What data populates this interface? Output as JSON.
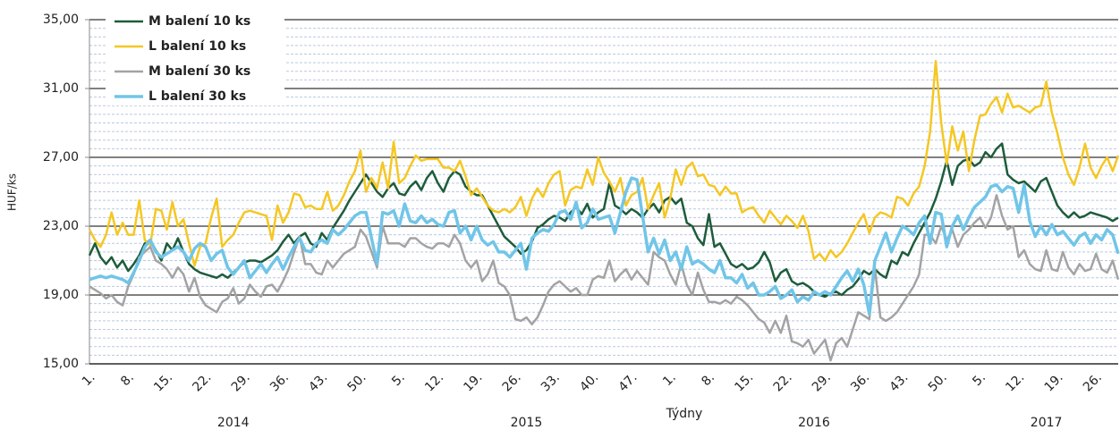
{
  "chart_data": {
    "type": "line",
    "y_label": "HUF/ks",
    "x_label": "Týdny",
    "categories": [
      "1.",
      null,
      null,
      null,
      null,
      null,
      null,
      "8.",
      null,
      null,
      null,
      null,
      null,
      null,
      "15.",
      null,
      null,
      null,
      null,
      null,
      null,
      "22.",
      null,
      null,
      null,
      null,
      null,
      null,
      "29.",
      null,
      null,
      null,
      null,
      null,
      null,
      "36.",
      null,
      null,
      null,
      null,
      null,
      null,
      "43.",
      null,
      null,
      null,
      null,
      null,
      null,
      "50.",
      null,
      null,
      null,
      null,
      null,
      null,
      "5.",
      null,
      null,
      null,
      null,
      null,
      null,
      "12.",
      null,
      null,
      null,
      null,
      null,
      null,
      "19.",
      null,
      null,
      null,
      null,
      null,
      null,
      "26.",
      null,
      null,
      null,
      null,
      null,
      null,
      "33.",
      null,
      null,
      null,
      null,
      null,
      null,
      "40.",
      null,
      null,
      null,
      null,
      null,
      null,
      "47.",
      null,
      null,
      null,
      null,
      null,
      null,
      "1.",
      null,
      null,
      null,
      null,
      null,
      null,
      "8.",
      null,
      null,
      null,
      null,
      null,
      null,
      "15.",
      null,
      null,
      null,
      null,
      null,
      null,
      "22.",
      null,
      null,
      null,
      null,
      null,
      null,
      "29.",
      null,
      null,
      null,
      null,
      null,
      null,
      "36.",
      null,
      null,
      null,
      null,
      null,
      null,
      "43.",
      null,
      null,
      null,
      null,
      null,
      null,
      "50.",
      null,
      null,
      null,
      null,
      null,
      null,
      "5.",
      null,
      null,
      null,
      null,
      null,
      null,
      "12.",
      null,
      null,
      null,
      null,
      null,
      null,
      "19.",
      null,
      null,
      null,
      null,
      null,
      null,
      "26.",
      null,
      null,
      null,
      null
    ],
    "year_labels": [
      null,
      null,
      null,
      null,
      null,
      null,
      null,
      null,
      null,
      null,
      null,
      null,
      null,
      null,
      null,
      null,
      null,
      null,
      null,
      null,
      null,
      null,
      null,
      null,
      null,
      null,
      "2014",
      null,
      null,
      null,
      null,
      null,
      null,
      null,
      null,
      null,
      null,
      null,
      null,
      null,
      null,
      null,
      null,
      null,
      null,
      null,
      null,
      null,
      null,
      null,
      null,
      null,
      null,
      null,
      null,
      null,
      null,
      null,
      null,
      null,
      null,
      null,
      null,
      null,
      null,
      null,
      null,
      null,
      null,
      null,
      null,
      null,
      null,
      null,
      null,
      null,
      null,
      null,
      null,
      "2015",
      null,
      null,
      null,
      null,
      null,
      null,
      null,
      null,
      null,
      null,
      null,
      null,
      null,
      null,
      null,
      null,
      null,
      null,
      null,
      null,
      null,
      null,
      null,
      null,
      null,
      null,
      null,
      null,
      null,
      null,
      null,
      null,
      null,
      null,
      null,
      null,
      null,
      null,
      null,
      null,
      null,
      null,
      null,
      null,
      null,
      null,
      null,
      null,
      null,
      null,
      null,
      "2016",
      null,
      null,
      null,
      null,
      null,
      null,
      null,
      null,
      null,
      null,
      null,
      null,
      null,
      null,
      null,
      null,
      null,
      null,
      null,
      null,
      null,
      null,
      null,
      null,
      null,
      null,
      null,
      null,
      null,
      null,
      null,
      null,
      null,
      null,
      null,
      null,
      null,
      null,
      null,
      null,
      null,
      "2017",
      null,
      null,
      null,
      null,
      null,
      null,
      null,
      null,
      null,
      null,
      null,
      null,
      null
    ],
    "series": [
      {
        "name": "M balení 10 ks",
        "color": "#1d5c3a",
        "width": 2.5,
        "values": [
          21.3,
          22.0,
          21.2,
          20.8,
          21.2,
          20.6,
          21.0,
          20.4,
          20.8,
          21.3,
          22.0,
          22.2,
          21.6,
          21.0,
          22.0,
          21.6,
          22.3,
          21.5,
          20.8,
          20.5,
          20.3,
          20.2,
          20.1,
          20.0,
          20.2,
          20.0,
          20.3,
          20.6,
          20.9,
          21.0,
          21.0,
          20.9,
          21.1,
          21.3,
          21.6,
          22.1,
          22.5,
          22.0,
          22.4,
          22.6,
          22.0,
          21.8,
          22.6,
          22.2,
          22.9,
          23.4,
          23.9,
          24.5,
          25.0,
          25.5,
          26.0,
          25.5,
          25.0,
          24.7,
          25.2,
          25.5,
          24.9,
          24.8,
          25.3,
          25.6,
          25.1,
          25.8,
          26.2,
          25.5,
          25.0,
          25.8,
          26.2,
          26.0,
          25.3,
          25.0,
          24.8,
          24.8,
          24.2,
          23.6,
          23.0,
          22.4,
          22.1,
          21.8,
          21.4,
          21.6,
          22.1,
          22.9,
          23.1,
          23.4,
          23.6,
          23.5,
          23.3,
          23.8,
          24.1,
          23.7,
          24.3,
          23.5,
          23.8,
          24.0,
          25.5,
          24.2,
          24.0,
          23.7,
          24.0,
          23.8,
          23.5,
          24.0,
          24.3,
          23.8,
          24.5,
          24.7,
          24.3,
          24.6,
          23.2,
          23.0,
          22.3,
          21.9,
          23.7,
          21.8,
          22.0,
          21.4,
          20.8,
          20.6,
          20.8,
          20.5,
          20.6,
          20.9,
          21.5,
          20.9,
          19.8,
          20.3,
          20.5,
          19.8,
          19.6,
          19.7,
          19.5,
          19.2,
          19.0,
          18.9,
          19.1,
          19.2,
          19.0,
          19.3,
          19.5,
          19.9,
          20.4,
          20.2,
          20.5,
          20.2,
          20.0,
          21.0,
          20.8,
          21.5,
          21.3,
          22.0,
          22.6,
          23.2,
          23.8,
          24.6,
          25.6,
          26.8,
          25.4,
          26.5,
          26.8,
          26.9,
          26.5,
          26.7,
          27.3,
          27.0,
          27.5,
          27.8,
          26.0,
          25.7,
          25.5,
          25.6,
          25.3,
          25.0,
          25.6,
          25.8,
          25.0,
          24.2,
          23.8,
          23.5,
          23.8,
          23.5,
          23.6,
          23.8,
          23.7,
          23.6,
          23.5,
          23.3,
          23.5
        ]
      },
      {
        "name": "L balení 10 ks",
        "color": "#f5c723",
        "width": 2.5,
        "values": [
          22.8,
          22.2,
          21.8,
          22.5,
          23.8,
          22.5,
          23.2,
          22.5,
          22.5,
          24.5,
          22.2,
          21.9,
          24.0,
          23.9,
          22.8,
          24.4,
          23.0,
          23.4,
          22.0,
          20.7,
          21.8,
          22.0,
          23.5,
          24.6,
          21.8,
          22.2,
          22.5,
          23.2,
          23.8,
          23.9,
          23.8,
          23.7,
          23.6,
          22.2,
          24.2,
          23.2,
          23.8,
          24.9,
          24.8,
          24.1,
          24.2,
          24.0,
          24.0,
          25.0,
          23.9,
          24.2,
          24.8,
          25.6,
          26.2,
          27.4,
          25.0,
          25.8,
          25.2,
          26.7,
          25.2,
          27.9,
          25.5,
          25.8,
          26.5,
          27.1,
          26.8,
          26.9,
          26.9,
          26.9,
          26.4,
          26.4,
          26.2,
          26.8,
          25.9,
          24.8,
          25.2,
          24.7,
          24.2,
          23.9,
          23.8,
          24.0,
          23.8,
          24.1,
          24.7,
          23.6,
          24.6,
          25.2,
          24.7,
          25.5,
          26.0,
          26.2,
          24.2,
          25.1,
          25.3,
          25.2,
          26.3,
          25.4,
          27.0,
          26.1,
          25.6,
          25.0,
          25.8,
          24.2,
          24.8,
          25.0,
          25.8,
          24.0,
          24.8,
          25.5,
          23.5,
          24.6,
          26.3,
          25.4,
          26.4,
          26.7,
          25.9,
          26.0,
          25.4,
          25.3,
          24.8,
          25.3,
          24.9,
          24.9,
          23.8,
          24.0,
          24.1,
          23.6,
          23.2,
          23.9,
          23.5,
          23.1,
          23.6,
          23.3,
          22.9,
          23.6,
          22.7,
          21.1,
          21.4,
          21.0,
          21.6,
          21.2,
          21.5,
          22.0,
          22.6,
          23.2,
          23.7,
          22.6,
          23.5,
          23.8,
          23.7,
          23.5,
          24.7,
          24.6,
          24.2,
          24.9,
          25.3,
          26.5,
          28.5,
          32.6,
          29.0,
          26.6,
          28.8,
          27.4,
          28.5,
          26.2,
          28.0,
          29.4,
          29.5,
          30.1,
          30.5,
          29.6,
          30.7,
          29.9,
          30.0,
          29.8,
          29.6,
          29.9,
          30.0,
          31.4,
          29.6,
          28.4,
          27.0,
          26.0,
          25.4,
          26.4,
          27.8,
          26.4,
          25.8,
          26.5,
          27.0,
          26.2,
          27.1
        ]
      },
      {
        "name": "M balení 30 ks",
        "color": "#a3a3a3",
        "width": 2.5,
        "values": [
          19.5,
          19.3,
          19.1,
          18.8,
          19.0,
          18.6,
          18.4,
          19.5,
          20.2,
          21.2,
          21.5,
          21.8,
          21.0,
          20.8,
          20.5,
          20.0,
          20.6,
          20.2,
          19.2,
          20.0,
          18.9,
          18.4,
          18.2,
          18.0,
          18.6,
          18.8,
          19.4,
          18.5,
          18.8,
          19.6,
          19.2,
          18.9,
          19.5,
          19.6,
          19.2,
          19.8,
          20.5,
          21.5,
          22.4,
          20.8,
          20.8,
          20.3,
          20.2,
          21.0,
          20.6,
          21.0,
          21.4,
          21.6,
          21.8,
          22.8,
          22.4,
          21.5,
          20.6,
          23.0,
          22.0,
          22.0,
          22.0,
          21.8,
          22.3,
          22.3,
          22.0,
          21.8,
          21.7,
          22.0,
          22.0,
          21.8,
          22.5,
          22.0,
          21.0,
          20.6,
          21.0,
          19.8,
          20.2,
          21.0,
          19.7,
          19.5,
          19.0,
          17.6,
          17.5,
          17.7,
          17.3,
          17.7,
          18.4,
          19.2,
          19.6,
          19.8,
          19.5,
          19.2,
          19.4,
          19.0,
          19.0,
          19.9,
          20.1,
          20.0,
          21.0,
          19.8,
          20.2,
          20.5,
          19.9,
          20.4,
          20.0,
          19.6,
          21.5,
          21.2,
          21.0,
          20.2,
          19.6,
          20.8,
          19.6,
          19.0,
          20.3,
          19.3,
          18.6,
          18.6,
          18.5,
          18.7,
          18.5,
          18.9,
          18.7,
          18.4,
          18.0,
          17.6,
          17.4,
          16.8,
          17.5,
          16.8,
          17.8,
          16.3,
          16.2,
          16.0,
          16.4,
          15.6,
          16.0,
          16.4,
          15.2,
          16.2,
          16.5,
          16.0,
          17.0,
          18.0,
          17.8,
          17.6,
          20.6,
          17.7,
          17.5,
          17.7,
          18.0,
          18.5,
          19.0,
          19.5,
          20.2,
          22.5,
          22.5,
          22.0,
          23.0,
          22.2,
          22.8,
          21.8,
          22.5,
          22.8,
          23.2,
          23.5,
          22.9,
          23.5,
          24.8,
          23.6,
          22.8,
          23.0,
          21.2,
          21.6,
          20.8,
          20.5,
          20.4,
          21.6,
          20.5,
          20.4,
          21.5,
          20.6,
          20.2,
          20.8,
          20.4,
          20.5,
          21.4,
          20.5,
          20.3,
          21.0,
          19.9
        ]
      },
      {
        "name": "L balení 30 ks",
        "color": "#71c5e8",
        "width": 3.5,
        "values": [
          19.9,
          20.0,
          20.1,
          20.0,
          20.1,
          20.0,
          19.9,
          19.7,
          20.3,
          21.0,
          21.8,
          22.2,
          21.5,
          21.2,
          21.4,
          21.6,
          21.8,
          21.5,
          21.0,
          21.7,
          22.0,
          21.8,
          21.0,
          21.4,
          21.6,
          20.6,
          20.2,
          20.6,
          21.0,
          20.0,
          20.4,
          20.8,
          20.3,
          20.8,
          21.2,
          20.5,
          21.2,
          21.8,
          22.3,
          21.6,
          21.5,
          22.0,
          22.2,
          22.0,
          22.8,
          22.5,
          22.8,
          23.2,
          23.6,
          23.8,
          23.8,
          22.3,
          20.8,
          23.8,
          23.7,
          23.9,
          23.0,
          24.3,
          23.3,
          23.2,
          23.6,
          23.2,
          23.4,
          23.1,
          23.0,
          23.8,
          23.9,
          22.6,
          23.0,
          22.2,
          23.0,
          22.2,
          21.9,
          22.1,
          21.5,
          21.5,
          21.2,
          21.6,
          22.0,
          20.5,
          22.3,
          22.6,
          22.8,
          22.7,
          23.1,
          23.8,
          23.9,
          23.4,
          24.4,
          22.9,
          23.2,
          24.0,
          23.4,
          23.5,
          23.6,
          22.6,
          23.8,
          25.0,
          25.8,
          25.7,
          23.6,
          21.5,
          22.3,
          21.4,
          22.2,
          21.0,
          21.5,
          20.5,
          21.8,
          20.8,
          21.0,
          20.8,
          20.5,
          20.3,
          21.0,
          20.0,
          20.0,
          19.7,
          20.2,
          19.4,
          19.7,
          19.0,
          19.0,
          19.2,
          19.5,
          18.8,
          19.0,
          19.3,
          18.6,
          18.9,
          18.7,
          19.2,
          19.0,
          19.2,
          19.0,
          19.5,
          20.0,
          20.4,
          19.8,
          20.5,
          19.6,
          17.9,
          21.0,
          21.8,
          22.6,
          21.5,
          22.3,
          23.0,
          22.8,
          22.5,
          23.2,
          23.6,
          22.0,
          23.8,
          23.7,
          21.8,
          23.0,
          23.6,
          22.8,
          23.5,
          24.1,
          24.4,
          24.7,
          25.3,
          25.4,
          25.0,
          25.3,
          25.2,
          23.8,
          25.4,
          23.3,
          22.4,
          23.0,
          22.5,
          23.1,
          22.5,
          22.7,
          22.3,
          21.9,
          22.4,
          22.6,
          22.0,
          22.5,
          22.2,
          22.8,
          22.5,
          21.4
        ]
      }
    ],
    "ylim": [
      15,
      35
    ],
    "yticks": [
      {
        "value": 15,
        "label": "15,00"
      },
      {
        "value": 19,
        "label": "19,00"
      },
      {
        "value": 23,
        "label": "23,00"
      },
      {
        "value": 27,
        "label": "27,00"
      },
      {
        "value": 31,
        "label": "31,00"
      },
      {
        "value": 35,
        "label": "35,00"
      }
    ],
    "grid": true,
    "minor_grid_step": 0.5,
    "legend": "top-left"
  }
}
